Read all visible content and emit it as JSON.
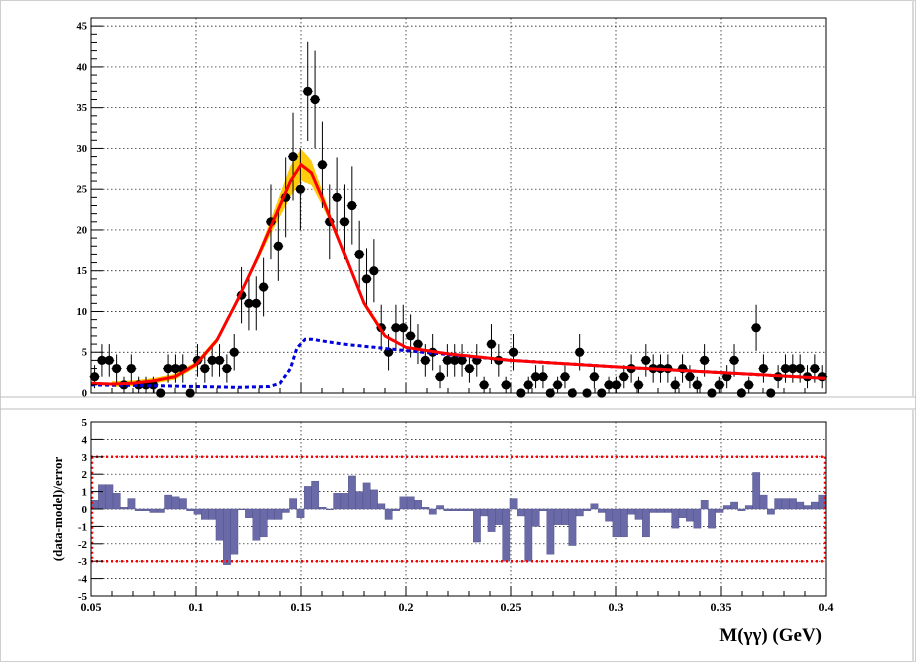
{
  "chart_data": [
    {
      "type": "scatter",
      "title": "",
      "xlabel": "",
      "ylabel": "",
      "xlim": [
        0.05,
        0.4
      ],
      "ylim": [
        0,
        46
      ],
      "grid": true,
      "y_ticks": [
        0,
        5,
        10,
        15,
        20,
        25,
        30,
        35,
        40,
        45
      ],
      "x_ticks": [
        0.05,
        0.1,
        0.15,
        0.2,
        0.25,
        0.3,
        0.35,
        0.4
      ],
      "colors": {
        "data": "#000000",
        "total_fit": "#ff0000",
        "band": "#ffc800",
        "background": "#0000dd"
      },
      "series": [
        {
          "kind": "points-with-errors",
          "x": [
            0.0517,
            0.0552,
            0.0587,
            0.0622,
            0.0657,
            0.0692,
            0.0727,
            0.0762,
            0.0797,
            0.0832,
            0.0867,
            0.0902,
            0.0937,
            0.0972,
            0.1007,
            0.1042,
            0.1077,
            0.1112,
            0.1147,
            0.1182,
            0.1217,
            0.1252,
            0.1287,
            0.1322,
            0.1357,
            0.1392,
            0.1427,
            0.1462,
            0.1497,
            0.1532,
            0.1567,
            0.1602,
            0.1637,
            0.1672,
            0.1707,
            0.1742,
            0.1777,
            0.1812,
            0.1847,
            0.1882,
            0.1917,
            0.1952,
            0.1987,
            0.2022,
            0.2057,
            0.2092,
            0.2127,
            0.2162,
            0.2197,
            0.2232,
            0.2267,
            0.2302,
            0.2337,
            0.2372,
            0.2407,
            0.2442,
            0.2477,
            0.2512,
            0.2547,
            0.2582,
            0.2617,
            0.2652,
            0.2687,
            0.2722,
            0.2757,
            0.2792,
            0.2827,
            0.2862,
            0.2897,
            0.2932,
            0.2967,
            0.3002,
            0.3037,
            0.3072,
            0.3107,
            0.3142,
            0.3177,
            0.3212,
            0.3247,
            0.3282,
            0.3317,
            0.3352,
            0.3387,
            0.3422,
            0.3457,
            0.3492,
            0.3527,
            0.3562,
            0.3597,
            0.3632,
            0.3667,
            0.3702,
            0.3737,
            0.3772,
            0.3807,
            0.3842,
            0.3877,
            0.3912,
            0.3947,
            0.3982
          ],
          "y": [
            2,
            4,
            4,
            3,
            1,
            3,
            1,
            1,
            1,
            0,
            3,
            3,
            3,
            0,
            4,
            3,
            4,
            4,
            3,
            5,
            12,
            11,
            11,
            13,
            21,
            18,
            24,
            29,
            25,
            37,
            36,
            28,
            21,
            24,
            21,
            23,
            17,
            14,
            15,
            8,
            5,
            8,
            8,
            7,
            6,
            4,
            5,
            2,
            4,
            4,
            4,
            3,
            4,
            1,
            6,
            4,
            1,
            5,
            0,
            1,
            2,
            2,
            0,
            1,
            2,
            0,
            5,
            0,
            2,
            0,
            1,
            1,
            2,
            3,
            1,
            4,
            3,
            3,
            3,
            1,
            3,
            2,
            1,
            4,
            0,
            1,
            2,
            4,
            0,
            1,
            8,
            3,
            0,
            2,
            3,
            3,
            3,
            2,
            3,
            2
          ]
        },
        {
          "kind": "total-fit-curve",
          "name": "",
          "x": [
            0.05,
            0.06,
            0.07,
            0.08,
            0.09,
            0.1,
            0.11,
            0.12,
            0.13,
            0.14,
            0.145,
            0.15,
            0.155,
            0.16,
            0.17,
            0.18,
            0.19,
            0.2,
            0.22,
            0.25,
            0.3,
            0.35,
            0.4
          ],
          "y": [
            1.2,
            1.1,
            1.2,
            1.5,
            2.0,
            3.5,
            6.5,
            11.5,
            17.0,
            23.0,
            26.0,
            28.0,
            27.0,
            24.0,
            17.5,
            11.0,
            7.0,
            5.6,
            4.8,
            4.0,
            3.2,
            2.5,
            1.8
          ]
        },
        {
          "kind": "background-curve",
          "name": "",
          "x": [
            0.05,
            0.08,
            0.1,
            0.12,
            0.135,
            0.14,
            0.145,
            0.148,
            0.152,
            0.155,
            0.17,
            0.2,
            0.25,
            0.3,
            0.35,
            0.4
          ],
          "y": [
            1.0,
            0.9,
            0.8,
            0.7,
            0.8,
            1.2,
            3.0,
            5.5,
            6.6,
            6.6,
            6.0,
            5.2,
            4.0,
            3.2,
            2.5,
            1.8
          ]
        }
      ]
    },
    {
      "type": "bar",
      "title": "",
      "xlabel": "M(γγ) (GeV)",
      "ylabel": "(data-model)/error",
      "xlim": [
        0.05,
        0.4
      ],
      "ylim": [
        -5,
        5
      ],
      "grid": true,
      "y_ticks": [
        -5,
        -4,
        -3,
        -2,
        -1,
        0,
        1,
        2,
        3,
        4,
        5
      ],
      "x_ticks": [
        0.05,
        0.1,
        0.15,
        0.2,
        0.25,
        0.3,
        0.35,
        0.4
      ],
      "reference_lines": [
        3,
        -3
      ],
      "colors": {
        "bars": "#6a6aa8",
        "bar_edge": "#4b4b86",
        "reference": "#ff0000"
      },
      "bin_width": 0.0035,
      "bin_start": 0.05,
      "values": [
        0.5,
        1.4,
        1.4,
        0.9,
        0.1,
        0.6,
        -0.1,
        -0.1,
        -0.2,
        -0.2,
        0.8,
        0.7,
        0.6,
        -0.1,
        -0.3,
        -0.6,
        -0.6,
        -1.8,
        -3.2,
        -2.6,
        0,
        -0.5,
        -1.8,
        -1.6,
        -0.6,
        -0.6,
        -0.2,
        0.6,
        -0.5,
        1.3,
        1.6,
        0.1,
        0,
        0.9,
        0.9,
        1.9,
        1.0,
        1.5,
        1.1,
        0.3,
        -0.6,
        -0.1,
        0.7,
        0.7,
        0.5,
        0.1,
        -0.3,
        0.2,
        -0.1,
        -0.1,
        -0.1,
        -0.1,
        -1.9,
        -0.4,
        -1.3,
        -0.9,
        -3.0,
        0.6,
        -0.4,
        -3.0,
        -1.0,
        -0.1,
        -2.6,
        -0.9,
        -0.9,
        -2.1,
        -0.4,
        -0.1,
        0.3,
        -0.2,
        -0.7,
        -1.6,
        -1.6,
        -0.3,
        -0.6,
        -1.6,
        -0.2,
        -0.2,
        -0.2,
        -1.1,
        -0.5,
        -0.7,
        -1.1,
        0.5,
        -1.1,
        -0.2,
        0.2,
        0.4,
        -0.1,
        0.2,
        2.1,
        0.8,
        -0.3,
        0.6,
        0.6,
        0.6,
        0.4,
        0.2,
        0.4,
        0.8
      ]
    }
  ]
}
